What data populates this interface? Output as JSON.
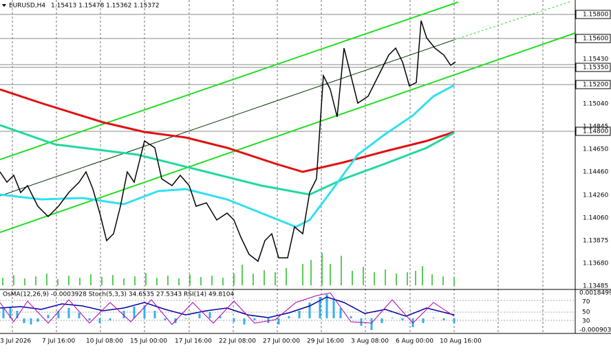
{
  "header": {
    "symbol": "EURUSD,H4",
    "ohlc": "1.15413 1.15478 1.15362 1.15372"
  },
  "price_scale": [
    "1.15800",
    "1.15600",
    "1.15430",
    "1.15350",
    "1.15200",
    "1.15040",
    "1.14845",
    "1.14800",
    "1.14650",
    "1.14460",
    "1.14260",
    "1.14060",
    "1.13875",
    "1.13680",
    "1.13485"
  ],
  "indicator": {
    "header": "OsMA(12,26,9) -0.0003928 Stoch(5,3,3) 34.6535 27.5343 RSI(14) 49.8104",
    "scale": [
      "0.0018499",
      "70",
      "50",
      "30",
      "-0.000903"
    ]
  },
  "time_scale": [
    "3 Jul 2026",
    "7 Jul 16:00",
    "10 Jul 08:00",
    "15 Jul 00:00",
    "17 Jul 16:00",
    "22 Jul 08:00",
    "27 Jul 00:00",
    "29 Jul 16:00",
    "3 Aug 08:00",
    "6 Aug 00:00",
    "10 Aug 16:00"
  ]
}
